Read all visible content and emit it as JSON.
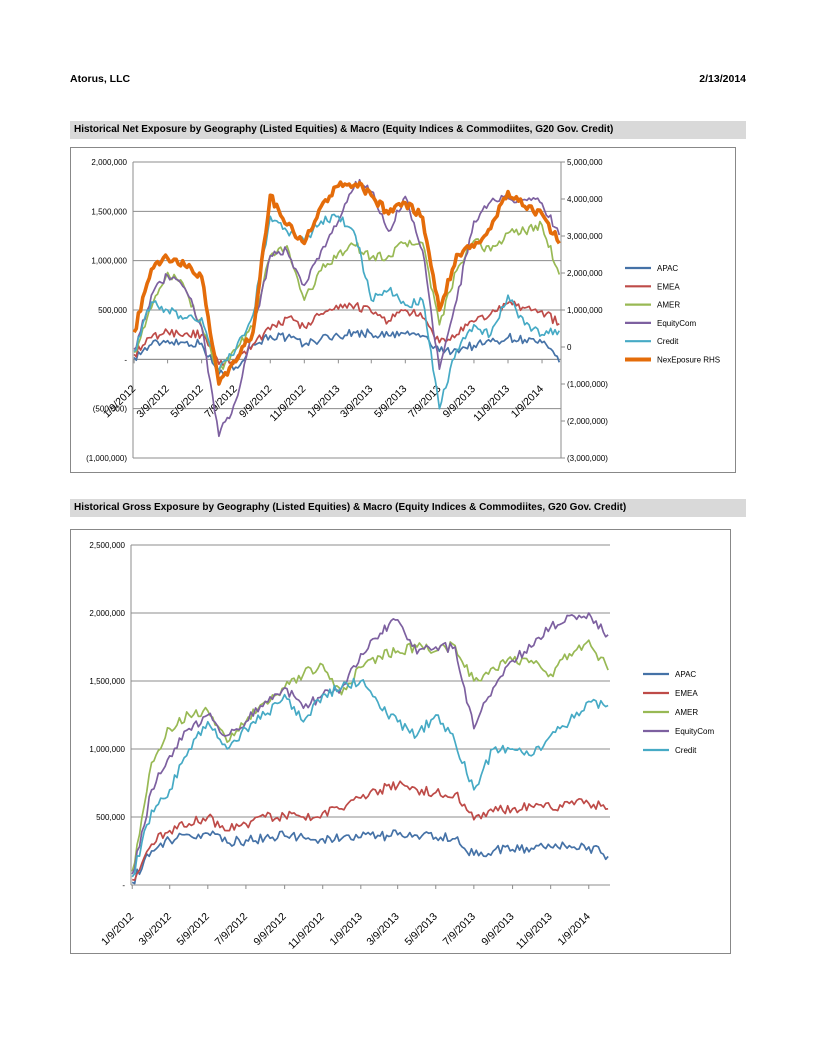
{
  "header": {
    "company": "Atorus, LLC",
    "date": "2/13/2014"
  },
  "chart_data": [
    {
      "type": "line",
      "title": "Historical Net Exposure by Geography (Listed Equities) & Macro (Equity Indices & Commodiites, G20 Gov. Credit)",
      "x": [
        "1/9/2012",
        "2/9/2012",
        "3/9/2012",
        "4/9/2012",
        "5/9/2012",
        "6/9/2012",
        "7/9/2012",
        "8/9/2012",
        "9/9/2012",
        "10/9/2012",
        "11/9/2012",
        "12/9/2012",
        "1/9/2013",
        "2/9/2013",
        "3/9/2013",
        "4/9/2013",
        "5/9/2013",
        "6/9/2013",
        "7/9/2013",
        "8/9/2013",
        "9/9/2013",
        "10/9/2013",
        "11/9/2013",
        "12/9/2013",
        "1/9/2014",
        "2/9/2014"
      ],
      "x_tick_labels": [
        "1/9/2012",
        "3/9/2012",
        "5/9/2012",
        "7/9/2012",
        "9/9/2012",
        "11/9/2012",
        "1/9/2013",
        "3/9/2013",
        "5/9/2013",
        "7/9/2013",
        "9/9/2013",
        "11/9/2013",
        "1/9/2014"
      ],
      "ylim": [
        -1000000,
        2000000
      ],
      "y_tick_labels": [
        "2,000,000",
        "1,500,000",
        "1,000,000",
        "500,000",
        "-",
        "(500,000)",
        "(1,000,000)"
      ],
      "y2lim": [
        -3000000,
        5000000
      ],
      "y2_tick_labels": [
        "5,000,000",
        "4,000,000",
        "3,000,000",
        "2,000,000",
        "1,000,000",
        "0",
        "(1,000,000)",
        "(2,000,000)",
        "(3,000,000)"
      ],
      "grid": true,
      "legend_position": "right",
      "series": [
        {
          "name": "APAC",
          "color": "#4572a7",
          "axis": "left",
          "values": [
            20000,
            150000,
            190000,
            170000,
            160000,
            -150000,
            -80000,
            150000,
            240000,
            220000,
            150000,
            210000,
            240000,
            270000,
            260000,
            240000,
            260000,
            240000,
            80000,
            100000,
            140000,
            180000,
            220000,
            200000,
            170000,
            -30000
          ]
        },
        {
          "name": "EMEA",
          "color": "#be4b48",
          "axis": "left",
          "values": [
            50000,
            220000,
            280000,
            260000,
            250000,
            -50000,
            0,
            150000,
            300000,
            420000,
            330000,
            460000,
            510000,
            550000,
            480000,
            390000,
            500000,
            420000,
            170000,
            250000,
            380000,
            460000,
            570000,
            520000,
            490000,
            360000
          ]
        },
        {
          "name": "AMER",
          "color": "#98b954",
          "axis": "left",
          "values": [
            70000,
            520000,
            880000,
            720000,
            330000,
            -120000,
            100000,
            330000,
            1050000,
            1150000,
            600000,
            900000,
            1080000,
            1150000,
            1030000,
            1050000,
            1180000,
            1180000,
            350000,
            900000,
            1200000,
            1100000,
            1280000,
            1300000,
            1360000,
            860000
          ]
        },
        {
          "name": "EquityCom",
          "color": "#7d60a0",
          "axis": "left",
          "values": [
            100000,
            650000,
            850000,
            720000,
            330000,
            -780000,
            -420000,
            300000,
            1050000,
            1100000,
            750000,
            1100000,
            1400000,
            1800000,
            1700000,
            1300000,
            1650000,
            1100000,
            -100000,
            600000,
            1400000,
            1600000,
            1630000,
            1620000,
            1580000,
            1260000
          ]
        },
        {
          "name": "Credit",
          "color": "#46aac5",
          "axis": "left",
          "values": [
            80000,
            580000,
            500000,
            420000,
            420000,
            -110000,
            100000,
            450000,
            1450000,
            1300000,
            1200000,
            1400000,
            1450000,
            1250000,
            600000,
            700000,
            550000,
            600000,
            -500000,
            100000,
            350000,
            250000,
            650000,
            350000,
            250000,
            290000
          ]
        },
        {
          "name": "NexEposure RHS",
          "color": "#e46c0a",
          "axis": "right",
          "values": [
            400000,
            2100000,
            2400000,
            2200000,
            1900000,
            -1000000,
            -400000,
            400000,
            4100000,
            3300000,
            2800000,
            3800000,
            4350000,
            4400000,
            4100000,
            3600000,
            3900000,
            3500000,
            1000000,
            2500000,
            2700000,
            3200000,
            4200000,
            3800000,
            3600000,
            2800000
          ]
        }
      ]
    },
    {
      "type": "line",
      "title": "Historical Gross Exposure by Geography (Listed Equities) & Macro (Equity Indices & Commodiites, G20 Gov. Credit)",
      "x": [
        "1/9/2012",
        "2/9/2012",
        "3/9/2012",
        "4/9/2012",
        "5/9/2012",
        "6/9/2012",
        "7/9/2012",
        "8/9/2012",
        "9/9/2012",
        "10/9/2012",
        "11/9/2012",
        "12/9/2012",
        "1/9/2013",
        "2/9/2013",
        "3/9/2013",
        "4/9/2013",
        "5/9/2013",
        "6/9/2013",
        "7/9/2013",
        "8/9/2013",
        "9/9/2013",
        "10/9/2013",
        "11/9/2013",
        "12/9/2013",
        "1/9/2014",
        "2/9/2014"
      ],
      "x_tick_labels": [
        "1/9/2012",
        "3/9/2012",
        "5/9/2012",
        "7/9/2012",
        "9/9/2012",
        "11/9/2012",
        "1/9/2013",
        "3/9/2013",
        "5/9/2013",
        "7/9/2013",
        "9/9/2013",
        "11/9/2013",
        "1/9/2014"
      ],
      "ylim": [
        0,
        2500000
      ],
      "y_tick_labels": [
        "2,500,000",
        "2,000,000",
        "1,500,000",
        "1,000,000",
        "500,000",
        "-"
      ],
      "grid": true,
      "legend_position": "right",
      "series": [
        {
          "name": "APAC",
          "color": "#4572a7",
          "values": [
            20000,
            250000,
            330000,
            370000,
            380000,
            310000,
            330000,
            350000,
            360000,
            350000,
            340000,
            340000,
            350000,
            360000,
            370000,
            365000,
            350000,
            340000,
            220000,
            250000,
            260000,
            270000,
            280000,
            290000,
            280000,
            210000
          ]
        },
        {
          "name": "EMEA",
          "color": "#be4b48",
          "values": [
            40000,
            300000,
            400000,
            450000,
            500000,
            400000,
            450000,
            500000,
            510000,
            500000,
            530000,
            560000,
            640000,
            700000,
            730000,
            700000,
            680000,
            670000,
            480000,
            540000,
            560000,
            580000,
            570000,
            600000,
            600000,
            560000
          ]
        },
        {
          "name": "AMER",
          "color": "#98b954",
          "values": [
            100000,
            900000,
            1150000,
            1250000,
            1280000,
            1050000,
            1200000,
            1350000,
            1450000,
            1550000,
            1620000,
            1400000,
            1600000,
            1680000,
            1720000,
            1750000,
            1720000,
            1760000,
            1500000,
            1600000,
            1650000,
            1650000,
            1550000,
            1700000,
            1800000,
            1580000
          ]
        },
        {
          "name": "EquityCom",
          "color": "#7d60a0",
          "values": [
            80000,
            700000,
            950000,
            1150000,
            1250000,
            1100000,
            1200000,
            1350000,
            1450000,
            1300000,
            1400000,
            1450000,
            1700000,
            1850000,
            1950000,
            1700000,
            1750000,
            1750000,
            1150000,
            1450000,
            1650000,
            1750000,
            1900000,
            1980000,
            2000000,
            1840000
          ]
        },
        {
          "name": "Credit",
          "color": "#46aac5",
          "values": [
            60000,
            550000,
            700000,
            1000000,
            1200000,
            1000000,
            1150000,
            1250000,
            1400000,
            1200000,
            1400000,
            1450000,
            1500000,
            1300000,
            1200000,
            1100000,
            1250000,
            1050000,
            700000,
            1000000,
            1000000,
            950000,
            1100000,
            1200000,
            1350000,
            1320000
          ]
        }
      ]
    }
  ]
}
